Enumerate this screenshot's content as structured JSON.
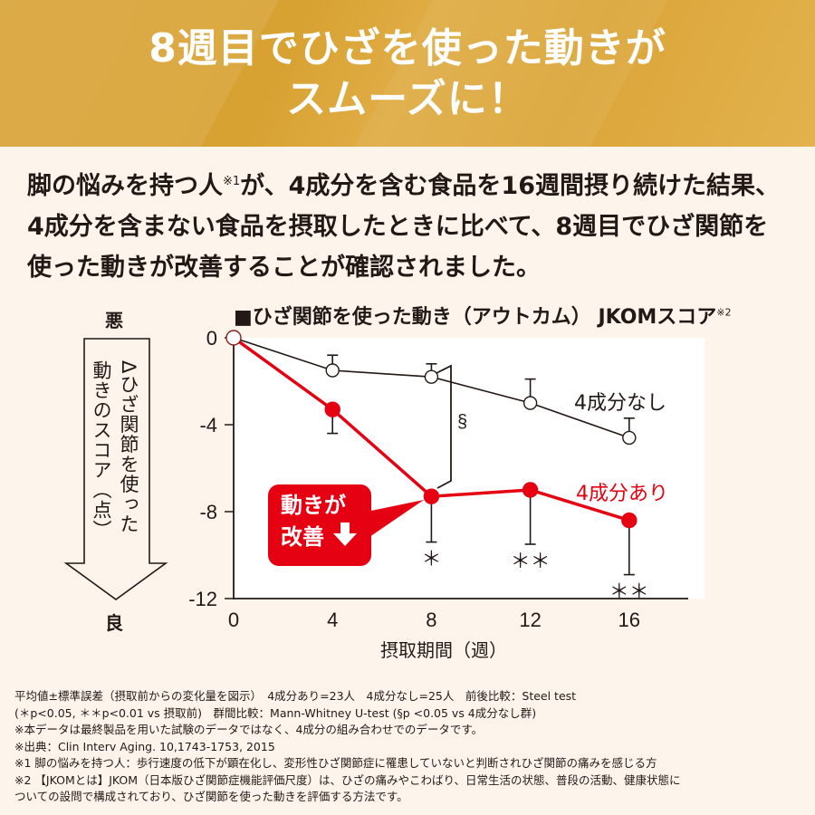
{
  "hero": {
    "title_line1": "8週目でひざを使った動きが",
    "title_line2": "スムーズに！"
  },
  "intro": {
    "line1_a": "脚の悩みを持つ人",
    "line1_sup": "※1",
    "line1_b": "が、4成分を含む食品を16週間摂り続けた結果、",
    "line2": "4成分を含まない食品を摂取したときに比べて、8週目でひざ関節を",
    "line3": "使った動きが改善することが確認されました。"
  },
  "chart_labels": {
    "title": "■ひざ関節を使った動き（アウトカム） JKOMスコア",
    "title_sup": "※2",
    "bad": "悪",
    "good": "良",
    "ylabel_col1": "Δひざ関節を使った",
    "ylabel_col2": "動きのスコア（点）",
    "xlabel": "摂取期間（週）",
    "callout_line1": "動きが",
    "callout_line2": "改善",
    "legend_without": "4成分なし",
    "legend_with": "4成分あり",
    "section_mark": "§"
  },
  "chart_data": {
    "type": "line",
    "title": "ひざ関節を使った動き（アウトカム） JKOMスコア",
    "xlabel": "摂取期間（週）",
    "ylabel": "Δひざ関節を使った動きのスコア（点）",
    "x": [
      0,
      4,
      8,
      12,
      16
    ],
    "xticks": [
      "0",
      "4",
      "8",
      "12",
      "16"
    ],
    "yticks": [
      "0",
      "-4",
      "-8",
      "-12"
    ],
    "ylim": [
      -12,
      0
    ],
    "xlim": [
      0,
      18
    ],
    "grid": false,
    "legend_position": "inline-right",
    "series": [
      {
        "name": "4成分なし",
        "color": "#231815",
        "marker": "open-circle",
        "values": [
          0,
          -1.5,
          -1.8,
          -3.0,
          -4.6
        ],
        "error_up": [
          0,
          0.7,
          0.6,
          1.1,
          0.9
        ]
      },
      {
        "name": "4成分あり",
        "color": "#e50012",
        "marker": "filled-circle",
        "values": [
          0,
          -3.3,
          -7.3,
          -7.0,
          -8.4
        ],
        "error_down": [
          0,
          1.1,
          2.1,
          2.5,
          2.5
        ]
      }
    ],
    "annotations": [
      {
        "x": 8,
        "text": "*",
        "series": "4成分あり"
      },
      {
        "x": 12,
        "text": "**",
        "series": "4成分あり"
      },
      {
        "x": 16,
        "text": "**",
        "series": "4成分あり"
      },
      {
        "x": 8,
        "text": "§",
        "between": [
          "4成分あり",
          "4成分なし"
        ]
      },
      {
        "text": "動きが改善↓",
        "type": "callout",
        "x": 8
      }
    ]
  },
  "notes": [
    "平均値±標準誤差（摂取前からの変化量を図示）　4成分あり=23人　4成分なし=25人　前後比較：Steel test",
    "(＊p<0.05, ＊＊p<0.01 vs 摂取前)　群間比較：Mann-Whitney U-test (§p <0.05 vs 4成分なし群)",
    "※本データは最終製品を用いた試験のデータではなく、4成分の組み合わせでのデータです。",
    "※出典：Clin Interv Aging. 10,1743-1753, 2015",
    "※1 脚の悩みを持つ人：歩行速度の低下が顕在化し、変形性ひざ関節症に罹患していないと判断されひざ関節の痛みを感じる方",
    "※2 【JKOMとは】JKOM（日本版ひざ関節症機能評価尺度）は、ひざの痛みやこわばり、日常生活の状態、普段の活動、健康状態に",
    "ついての設問で構成されており、ひざ関節を使った動きを評価する方法です。"
  ]
}
